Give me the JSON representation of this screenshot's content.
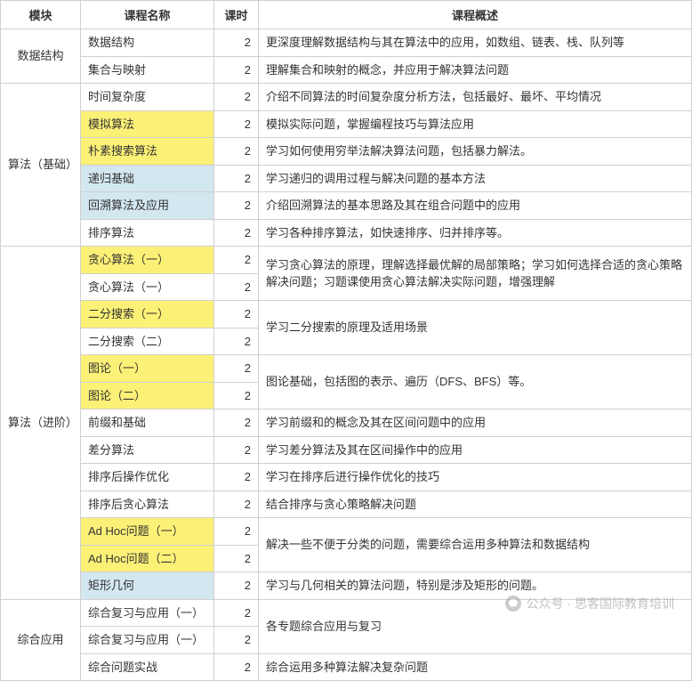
{
  "headers": {
    "module": "模块",
    "name": "课程名称",
    "hours": "课时",
    "desc": "课程概述"
  },
  "colors": {
    "highlight_yellow": "#fcf177",
    "highlight_blue": "#d3e7f0",
    "border": "#d0d0d0",
    "text": "#333333",
    "background": "#ffffff"
  },
  "modules": [
    {
      "name": "数据结构",
      "rowspan": 2,
      "rows": [
        {
          "name": "数据结构",
          "hours": 2,
          "desc": "更深度理解数据结构与其在算法中的应用，如数组、链表、栈、队列等",
          "hl": null
        },
        {
          "name": "集合与映射",
          "hours": 2,
          "desc": "理解集合和映射的概念，并应用于解决算法问题",
          "hl": null
        }
      ]
    },
    {
      "name": "算法（基础）",
      "rowspan": 6,
      "rows": [
        {
          "name": "时间复杂度",
          "hours": 2,
          "desc": "介绍不同算法的时间复杂度分析方法，包括最好、最坏、平均情况",
          "hl": null
        },
        {
          "name": "模拟算法",
          "hours": 2,
          "desc": "模拟实际问题，掌握编程技巧与算法应用",
          "hl": "yellow"
        },
        {
          "name": "朴素搜索算法",
          "hours": 2,
          "desc": "学习如何使用穷举法解决算法问题，包括暴力解法。",
          "hl": "yellow"
        },
        {
          "name": "递归基础",
          "hours": 2,
          "desc": "学习递归的调用过程与解决问题的基本方法",
          "hl": "blue"
        },
        {
          "name": "回溯算法及应用",
          "hours": 2,
          "desc": "介绍回溯算法的基本思路及其在组合问题中的应用",
          "hl": "blue"
        },
        {
          "name": "排序算法",
          "hours": 2,
          "desc": "学习各种排序算法，如快速排序、归并排序等。",
          "hl": null
        }
      ]
    },
    {
      "name": "算法（进阶）",
      "rowspan": 13,
      "rows": [
        {
          "name": "贪心算法（一）",
          "hours": 2,
          "desc": "学习贪心算法的原理，理解选择最优解的局部策略；学习如何选择合适的贪心策略解决问题；习题课使用贪心算法解决实际问题，增强理解",
          "hl": "yellow",
          "desc_rowspan": 2
        },
        {
          "name": "贪心算法（一）",
          "hours": 2,
          "hl": null
        },
        {
          "name": "二分搜索（一）",
          "hours": 2,
          "desc": "学习二分搜索的原理及适用场景",
          "hl": "yellow",
          "desc_rowspan": 2
        },
        {
          "name": "二分搜索（二）",
          "hours": 2,
          "hl": null
        },
        {
          "name": "图论（一）",
          "hours": 2,
          "desc": "图论基础，包括图的表示、遍历（DFS、BFS）等。",
          "hl": "yellow",
          "desc_rowspan": 2
        },
        {
          "name": "图论（二）",
          "hours": 2,
          "hl": "yellow"
        },
        {
          "name": "前缀和基础",
          "hours": 2,
          "desc": "学习前缀和的概念及其在区间问题中的应用",
          "hl": null
        },
        {
          "name": "差分算法",
          "hours": 2,
          "desc": "学习差分算法及其在区间操作中的应用",
          "hl": null
        },
        {
          "name": "排序后操作优化",
          "hours": 2,
          "desc": "学习在排序后进行操作优化的技巧",
          "hl": null
        },
        {
          "name": "排序后贪心算法",
          "hours": 2,
          "desc": "结合排序与贪心策略解决问题",
          "hl": null
        },
        {
          "name": "Ad Hoc问题（一）",
          "hours": 2,
          "desc": "解决一些不便于分类的问题，需要综合运用多种算法和数据结构",
          "hl": "yellow",
          "desc_rowspan": 2
        },
        {
          "name": "Ad Hoc问题（二）",
          "hours": 2,
          "hl": "yellow"
        },
        {
          "name": "矩形几何",
          "hours": 2,
          "desc": "学习与几何相关的算法问题，特别是涉及矩形的问题。",
          "hl": "blue"
        }
      ]
    },
    {
      "name": "综合应用",
      "rowspan": 3,
      "rows": [
        {
          "name": "综合复习与应用（一）",
          "hours": 2,
          "desc": "各专题综合应用与复习",
          "hl": null,
          "desc_rowspan": 2
        },
        {
          "name": "综合复习与应用（一）",
          "hours": 2,
          "hl": null
        },
        {
          "name": "综合问题实战",
          "hours": 2,
          "desc": "综合运用多种算法解决复杂问题",
          "hl": null
        }
      ]
    }
  ],
  "watermark": {
    "text": "公众号 · 思客国际教育培训"
  }
}
